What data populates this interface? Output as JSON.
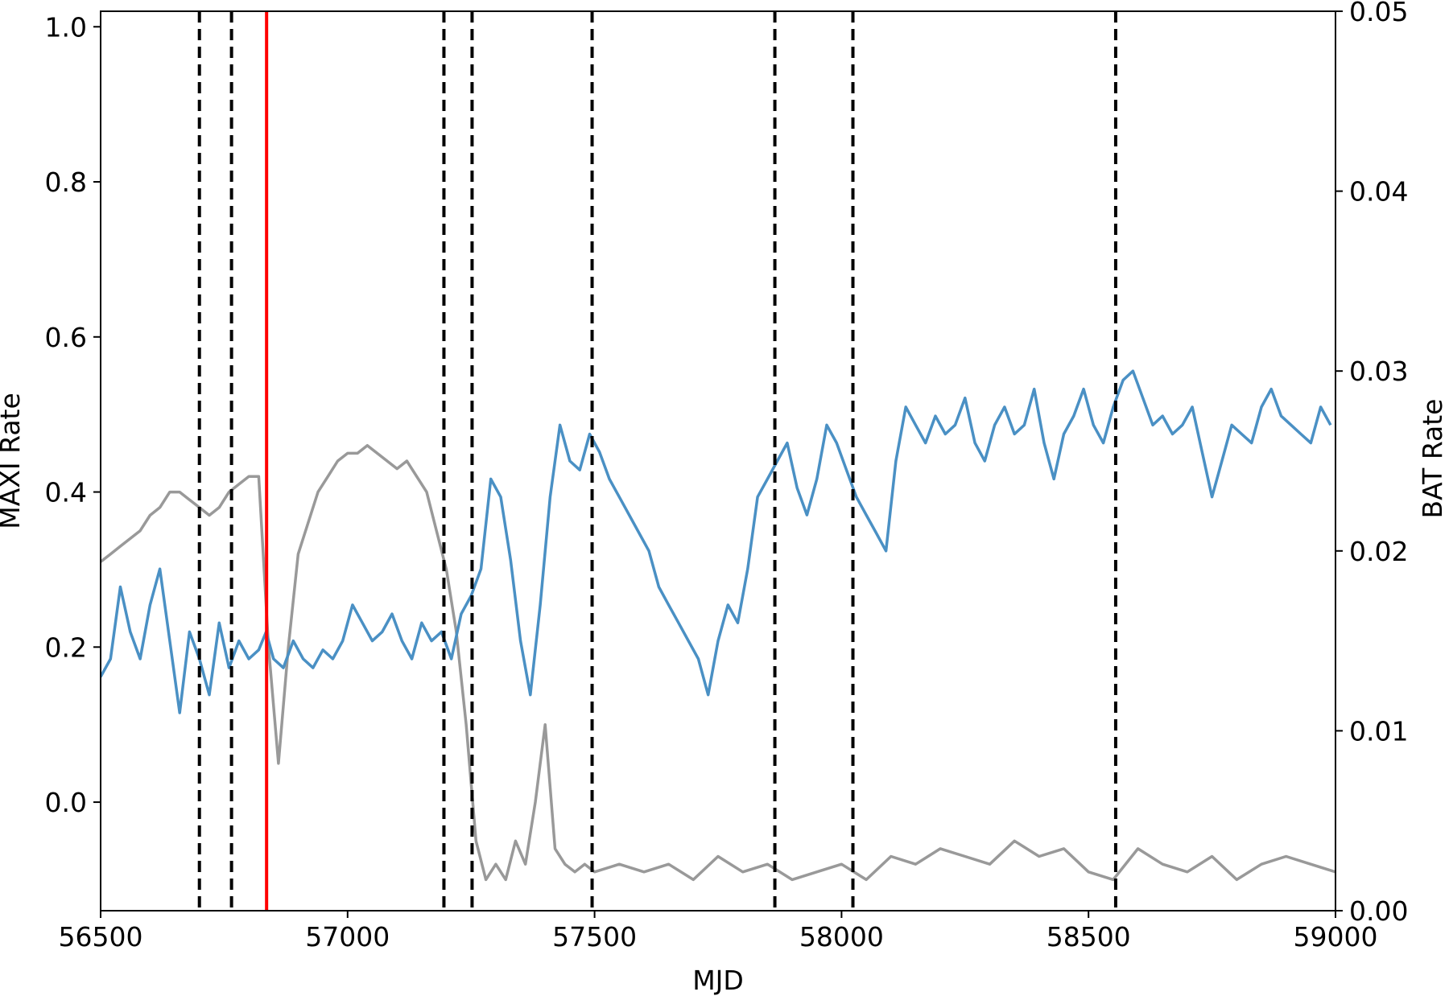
{
  "chart_data": {
    "type": "line",
    "title": "",
    "xlabel": "MJD",
    "ylabel_left": "MAXI Rate",
    "ylabel_right": "BAT Rate",
    "xlim": [
      56500,
      59000
    ],
    "ylim_left": [
      -0.14,
      1.02
    ],
    "ylim_right": [
      0.0,
      0.05
    ],
    "x_ticks": [
      56500,
      57000,
      57500,
      58000,
      58500,
      59000
    ],
    "y_left_ticks": [
      0.0,
      0.2,
      0.4,
      0.6,
      0.8,
      1.0
    ],
    "y_right_ticks": [
      0.0,
      0.01,
      0.02,
      0.03,
      0.04,
      0.05
    ],
    "grid": false,
    "legend": "none",
    "colors": {
      "blue": "#4a90c4",
      "gray": "#999999",
      "red": "#ff0000",
      "dashed": "#000000"
    },
    "series": [
      {
        "axis": "right",
        "color": "#4a90c4",
        "x": [
          56500,
          56520,
          56540,
          56560,
          56580,
          56600,
          56620,
          56640,
          56660,
          56680,
          56700,
          56720,
          56740,
          56760,
          56780,
          56800,
          56820,
          56835,
          56850,
          56870,
          56890,
          56910,
          56930,
          56950,
          56970,
          56990,
          57010,
          57030,
          57050,
          57070,
          57090,
          57110,
          57130,
          57150,
          57170,
          57190,
          57210,
          57230,
          57250,
          57270,
          57290,
          57310,
          57330,
          57350,
          57370,
          57390,
          57410,
          57430,
          57450,
          57470,
          57490,
          57510,
          57530,
          57550,
          57570,
          57590,
          57610,
          57630,
          57650,
          57670,
          57690,
          57710,
          57730,
          57750,
          57770,
          57790,
          57810,
          57830,
          57850,
          57870,
          57890,
          57910,
          57930,
          57950,
          57970,
          57990,
          58010,
          58030,
          58050,
          58070,
          58090,
          58110,
          58130,
          58150,
          58170,
          58190,
          58210,
          58230,
          58250,
          58270,
          58290,
          58310,
          58330,
          58350,
          58370,
          58390,
          58410,
          58430,
          58450,
          58470,
          58490,
          58510,
          58530,
          58550,
          58570,
          58590,
          58610,
          58630,
          58650,
          58670,
          58690,
          58710,
          58730,
          58750,
          58770,
          58790,
          58810,
          58830,
          58850,
          58870,
          58890,
          58910,
          58930,
          58950,
          58970,
          58990
        ],
        "y": [
          0.013,
          0.014,
          0.018,
          0.0155,
          0.014,
          0.017,
          0.019,
          0.015,
          0.011,
          0.0155,
          0.014,
          0.012,
          0.016,
          0.0135,
          0.015,
          0.014,
          0.0145,
          0.0155,
          0.014,
          0.0135,
          0.015,
          0.014,
          0.0135,
          0.0145,
          0.014,
          0.015,
          0.017,
          0.016,
          0.015,
          0.0155,
          0.0165,
          0.015,
          0.014,
          0.016,
          0.015,
          0.0155,
          0.014,
          0.0165,
          0.0175,
          0.019,
          0.024,
          0.023,
          0.0195,
          0.015,
          0.012,
          0.017,
          0.023,
          0.027,
          0.025,
          0.0245,
          0.0265,
          0.0255,
          0.024,
          0.023,
          0.022,
          0.021,
          0.02,
          0.018,
          0.017,
          0.016,
          0.015,
          0.014,
          0.012,
          0.015,
          0.017,
          0.016,
          0.019,
          0.023,
          0.024,
          0.025,
          0.026,
          0.0235,
          0.022,
          0.024,
          0.027,
          0.026,
          0.0245,
          0.023,
          0.022,
          0.021,
          0.02,
          0.025,
          0.028,
          0.027,
          0.026,
          0.0275,
          0.0265,
          0.027,
          0.0285,
          0.026,
          0.025,
          0.027,
          0.028,
          0.0265,
          0.027,
          0.029,
          0.026,
          0.024,
          0.0265,
          0.0275,
          0.029,
          0.027,
          0.026,
          0.028,
          0.0295,
          0.03,
          0.0285,
          0.027,
          0.0275,
          0.0265,
          0.027,
          0.028,
          0.0255,
          0.023,
          0.025,
          0.027,
          0.0265,
          0.026,
          0.028,
          0.029,
          0.0275,
          0.027,
          0.0265,
          0.026,
          0.028,
          0.027
        ]
      },
      {
        "axis": "left",
        "color": "#999999",
        "x": [
          56500,
          56520,
          56540,
          56560,
          56580,
          56600,
          56620,
          56640,
          56660,
          56680,
          56700,
          56720,
          56740,
          56760,
          56780,
          56800,
          56820,
          56840,
          56860,
          56880,
          56900,
          56920,
          56940,
          56960,
          56980,
          57000,
          57020,
          57040,
          57060,
          57080,
          57100,
          57120,
          57140,
          57160,
          57180,
          57200,
          57220,
          57240,
          57260,
          57280,
          57300,
          57320,
          57340,
          57360,
          57380,
          57400,
          57420,
          57440,
          57460,
          57480,
          57500,
          57550,
          57600,
          57650,
          57700,
          57750,
          57800,
          57850,
          57900,
          57950,
          58000,
          58050,
          58100,
          58150,
          58200,
          58250,
          58300,
          58350,
          58400,
          58450,
          58500,
          58550,
          58600,
          58650,
          58700,
          58750,
          58800,
          58850,
          58900,
          58950,
          59000
        ],
        "y": [
          0.31,
          0.32,
          0.33,
          0.34,
          0.35,
          0.37,
          0.38,
          0.4,
          0.4,
          0.39,
          0.38,
          0.37,
          0.38,
          0.4,
          0.41,
          0.42,
          0.42,
          0.2,
          0.05,
          0.2,
          0.32,
          0.36,
          0.4,
          0.42,
          0.44,
          0.45,
          0.45,
          0.46,
          0.45,
          0.44,
          0.43,
          0.44,
          0.42,
          0.4,
          0.35,
          0.3,
          0.22,
          0.1,
          -0.05,
          -0.1,
          -0.08,
          -0.1,
          -0.05,
          -0.08,
          0.0,
          0.1,
          -0.06,
          -0.08,
          -0.09,
          -0.08,
          -0.09,
          -0.08,
          -0.09,
          -0.08,
          -0.1,
          -0.07,
          -0.09,
          -0.08,
          -0.1,
          -0.09,
          -0.08,
          -0.1,
          -0.07,
          -0.08,
          -0.06,
          -0.07,
          -0.08,
          -0.05,
          -0.07,
          -0.06,
          -0.09,
          -0.1,
          -0.06,
          -0.08,
          -0.09,
          -0.07,
          -0.1,
          -0.08,
          -0.07,
          -0.08,
          -0.09
        ]
      }
    ],
    "red_line_x": 56836,
    "dashed_lines_x": [
      56700,
      56765,
      57195,
      57252,
      57495,
      57865,
      58023,
      58555
    ]
  }
}
